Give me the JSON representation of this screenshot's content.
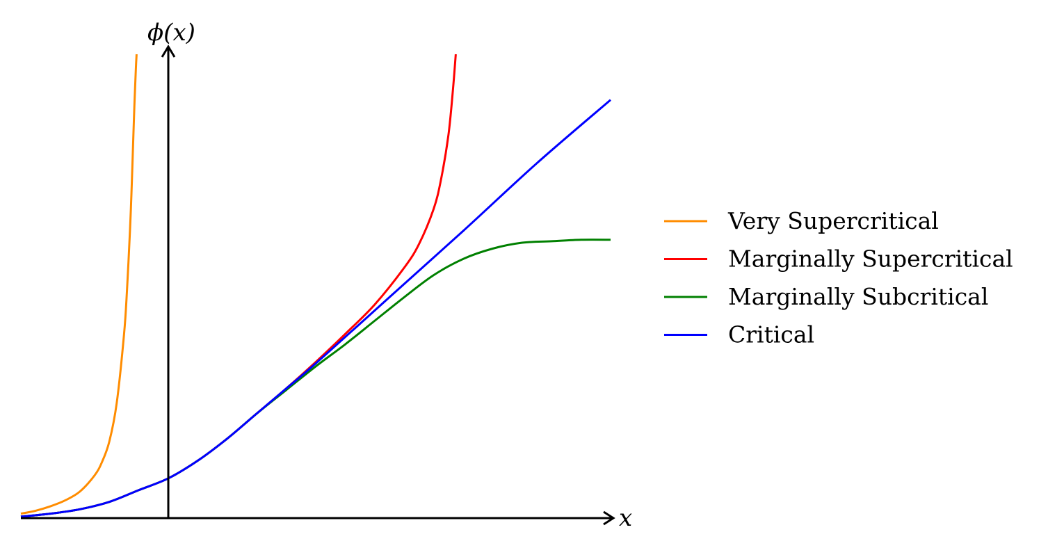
{
  "chart_data": {
    "type": "line",
    "xlabel": "x",
    "ylabel": "ϕ(x)",
    "axes_ticks": "none",
    "grid": false,
    "legend_position": "right",
    "xlim": [
      -1.0,
      3.0
    ],
    "ylim": [
      0,
      3.15
    ],
    "series": [
      {
        "name": "Very Supercritical",
        "color": "#ff8c00",
        "x": [
          -1.0,
          -0.9,
          -0.8,
          -0.7,
          -0.6,
          -0.5,
          -0.45,
          -0.4,
          -0.35,
          -0.3,
          -0.28,
          -0.26,
          -0.25,
          -0.24,
          -0.23,
          -0.22,
          -0.215
        ],
        "y": [
          0.03,
          0.05,
          0.08,
          0.12,
          0.18,
          0.29,
          0.38,
          0.52,
          0.78,
          1.25,
          1.55,
          1.95,
          2.2,
          2.5,
          2.8,
          3.05,
          3.15
        ]
      },
      {
        "name": "Marginally Supercritical",
        "color": "#ff0000",
        "x": [
          -1.0,
          -0.8,
          -0.6,
          -0.4,
          -0.2,
          0.0,
          0.2,
          0.4,
          0.6,
          0.8,
          1.0,
          1.2,
          1.4,
          1.6,
          1.7,
          1.8,
          1.85,
          1.9,
          1.93,
          1.95
        ],
        "y": [
          0.01,
          0.03,
          0.06,
          0.11,
          0.19,
          0.27,
          0.39,
          0.54,
          0.71,
          0.88,
          1.06,
          1.25,
          1.45,
          1.7,
          1.86,
          2.1,
          2.3,
          2.6,
          2.9,
          3.15
        ]
      },
      {
        "name": "Marginally Subcritical",
        "color": "#008000",
        "x": [
          -1.0,
          -0.8,
          -0.6,
          -0.4,
          -0.2,
          0.0,
          0.2,
          0.4,
          0.6,
          0.8,
          1.0,
          1.2,
          1.4,
          1.6,
          1.8,
          2.0,
          2.2,
          2.4,
          2.6,
          2.8,
          3.0
        ],
        "y": [
          0.01,
          0.03,
          0.06,
          0.11,
          0.19,
          0.27,
          0.39,
          0.54,
          0.71,
          0.87,
          1.03,
          1.18,
          1.34,
          1.5,
          1.65,
          1.76,
          1.83,
          1.87,
          1.88,
          1.89,
          1.89
        ]
      },
      {
        "name": "Critical",
        "color": "#0000ff",
        "x": [
          -1.0,
          -0.8,
          -0.6,
          -0.4,
          -0.2,
          0.0,
          0.2,
          0.4,
          0.6,
          0.8,
          1.0,
          1.5,
          2.0,
          2.5,
          3.0
        ],
        "y": [
          0.01,
          0.03,
          0.06,
          0.11,
          0.19,
          0.27,
          0.39,
          0.54,
          0.71,
          0.88,
          1.05,
          1.5,
          1.95,
          2.41,
          2.84
        ]
      }
    ]
  }
}
